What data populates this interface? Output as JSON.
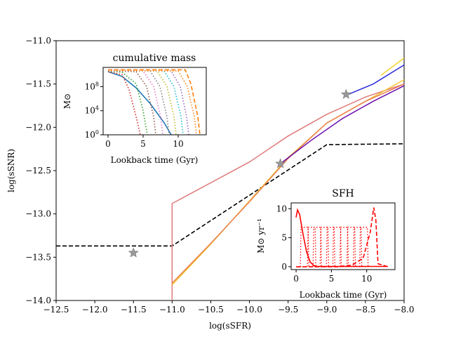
{
  "chart_data": [
    {
      "type": "line",
      "role": "main",
      "xlabel": "log(sSFR)",
      "ylabel": "log(sSNR)",
      "xlim": [
        -12.5,
        -8.0
      ],
      "ylim": [
        -14.0,
        -11.0
      ],
      "xticks": [
        -12.5,
        -12.0,
        -11.5,
        -11.0,
        -10.5,
        -10.0,
        -9.5,
        -9.0,
        -8.5,
        -8.0
      ],
      "xticklabels": [
        "−12.5",
        "−12.0",
        "−11.5",
        "−11.0",
        "−10.5",
        "−10.0",
        "−9.5",
        "−9.0",
        "−8.5",
        "−8.0"
      ],
      "yticks": [
        -14.0,
        -13.5,
        -13.0,
        -12.5,
        -12.0,
        -11.5,
        -11.0
      ],
      "yticklabels": [
        "−14.0",
        "−13.5",
        "−13.0",
        "−12.5",
        "−12.0",
        "−11.5",
        "−11.0"
      ],
      "grid": false,
      "series": [
        {
          "color": "#000000",
          "style": "dashed",
          "x": [
            -12.5,
            -11.0,
            -9.0,
            -8.0
          ],
          "y": [
            -13.37,
            -13.37,
            -12.2,
            -12.19
          ]
        },
        {
          "color": "#e07a7a",
          "style": "solid",
          "x": [
            -11.0,
            -11.0,
            -10.0,
            -9.5,
            -9.0,
            -8.5,
            -8.0
          ],
          "y": [
            -14.0,
            -12.88,
            -12.4,
            -12.1,
            -11.85,
            -11.65,
            -11.5
          ]
        },
        {
          "color": "#f4c430",
          "style": "solid",
          "x": [
            -11.0,
            -10.5,
            -10.0,
            -9.5,
            -9.0,
            -8.5,
            -8.0
          ],
          "y": [
            -13.82,
            -13.35,
            -12.85,
            -12.35,
            -11.95,
            -11.7,
            -11.45
          ]
        },
        {
          "color": "#e8804e",
          "style": "solid",
          "x": [
            -11.0,
            -10.5,
            -10.0,
            -9.5,
            -9.0,
            -8.5,
            -8.0
          ],
          "y": [
            -13.8,
            -13.34,
            -12.86,
            -12.36,
            -11.95,
            -11.7,
            -11.5
          ]
        },
        {
          "color": "#6a0dad",
          "style": "solid",
          "x": [
            -9.6,
            -9.2,
            -8.8,
            -8.4,
            -8.0
          ],
          "y": [
            -12.42,
            -12.15,
            -11.9,
            -11.7,
            -11.52
          ]
        },
        {
          "color": "#2b2bd8",
          "style": "solid",
          "x": [
            -8.75,
            -8.4,
            -8.0
          ],
          "y": [
            -11.63,
            -11.5,
            -11.28
          ]
        },
        {
          "color": "#f2d021",
          "style": "solid",
          "x": [
            -8.3,
            -8.0
          ],
          "y": [
            -11.4,
            -11.2
          ]
        }
      ],
      "markers": {
        "type": "star",
        "color": "#999999",
        "x": [
          -11.5,
          -9.6,
          -8.75
        ],
        "y": [
          -13.45,
          -12.42,
          -11.62
        ]
      }
    },
    {
      "type": "line",
      "role": "inset",
      "title": "cumulative mass",
      "xlabel": "Lookback time (Gyr)",
      "ylabel": "M⊙",
      "xlim": [
        -0.7,
        14.0
      ],
      "ylim_log10": [
        0,
        11.2
      ],
      "xticks": [
        0,
        5,
        10
      ],
      "xticklabels": [
        "0",
        "5",
        "10"
      ],
      "yticks_log10": [
        0,
        4,
        8
      ],
      "yticklabels": [
        {
          "base": "10",
          "exp": "0"
        },
        {
          "base": "10",
          "exp": "4"
        },
        {
          "base": "10",
          "exp": "8"
        }
      ],
      "series": [
        {
          "color": "#1f77b4",
          "style": "solid",
          "x": [
            0,
            2,
            4,
            6,
            8,
            9
          ],
          "log10y": [
            10.5,
            9.7,
            7.8,
            5.2,
            2.0,
            0
          ]
        },
        {
          "color": "#d62728",
          "style": "dotted",
          "x": [
            0,
            2,
            3,
            4,
            4.6
          ],
          "log10y": [
            10.5,
            10.0,
            7.5,
            3.0,
            0
          ]
        },
        {
          "color": "#2ca02c",
          "style": "dotted",
          "x": [
            0,
            2,
            4,
            5,
            5.6
          ],
          "log10y": [
            10.6,
            10.4,
            8.5,
            4.0,
            0
          ]
        },
        {
          "color": "#8c564b",
          "style": "dotted",
          "x": [
            0,
            4,
            5.5,
            6.5,
            6.8
          ],
          "log10y": [
            10.6,
            10.5,
            8.0,
            3.0,
            0
          ]
        },
        {
          "color": "#e377c2",
          "style": "dotted",
          "x": [
            0,
            5,
            6.5,
            7.5,
            7.8
          ],
          "log10y": [
            10.7,
            10.6,
            8.0,
            3.0,
            0
          ]
        },
        {
          "color": "#7f7f7f",
          "style": "dotted",
          "x": [
            0,
            6,
            7.4,
            8.4,
            8.7
          ],
          "log10y": [
            10.7,
            10.6,
            8.0,
            3.0,
            0
          ]
        },
        {
          "color": "#bcbd22",
          "style": "dotted",
          "x": [
            0,
            7,
            8.4,
            9.4,
            9.7
          ],
          "log10y": [
            10.7,
            10.6,
            8.0,
            3.0,
            0
          ]
        },
        {
          "color": "#17becf",
          "style": "dotted",
          "x": [
            0,
            8,
            9.4,
            10.4,
            10.7
          ],
          "log10y": [
            10.7,
            10.6,
            8.0,
            3.0,
            0
          ]
        },
        {
          "color": "#9467bd",
          "style": "dotted",
          "x": [
            0,
            9,
            10.3,
            11.2,
            11.5
          ],
          "log10y": [
            10.7,
            10.6,
            8.0,
            3.0,
            0
          ]
        },
        {
          "color": "#ff7f0e",
          "style": "dotted",
          "x": [
            0,
            10,
            11.3,
            12.3,
            12.6
          ],
          "log10y": [
            10.7,
            10.6,
            8.0,
            3.0,
            0
          ]
        },
        {
          "color": "#ff7f0e",
          "style": "dashed",
          "x": [
            0,
            11,
            11.8,
            12.8,
            13.1
          ],
          "log10y": [
            10.8,
            10.8,
            8.5,
            3.0,
            0
          ]
        }
      ]
    },
    {
      "type": "line",
      "role": "inset",
      "title": "SFH",
      "xlabel": "Lookback time (Gyr)",
      "ylabel": "M⊙ yr⁻¹",
      "xlim": [
        -0.7,
        14.0
      ],
      "ylim": [
        -0.5,
        11.0
      ],
      "xticks": [
        0,
        5,
        10
      ],
      "xticklabels": [
        "0",
        "5",
        "10"
      ],
      "yticks": [
        0,
        5,
        10
      ],
      "yticklabels": [
        "0",
        "5",
        "10"
      ],
      "series": [
        {
          "color": "#ff0000",
          "style": "solid",
          "x": [
            0,
            0.2,
            0.5,
            1.0,
            1.5,
            2.0,
            2.5,
            3.0,
            13.0
          ],
          "y": [
            8.5,
            9.8,
            9.0,
            5.5,
            2.5,
            0.8,
            0.2,
            0.05,
            0.05
          ]
        },
        {
          "color": "#ff0000",
          "style": "dashed",
          "x": [
            0,
            6,
            8,
            9.5,
            10.5,
            11.0,
            11.3,
            11.6,
            13.0
          ],
          "y": [
            0,
            0,
            0.3,
            1.5,
            6.0,
            10.2,
            8.0,
            0.5,
            0
          ]
        },
        {
          "color": "#ff0000",
          "style": "dotted",
          "centers": [
            1.2,
            2.2,
            3.0,
            4.0,
            4.9,
            5.8,
            6.8,
            7.8,
            8.7,
            9.6
          ],
          "width": 1.2,
          "height": 6.8
        }
      ]
    }
  ]
}
